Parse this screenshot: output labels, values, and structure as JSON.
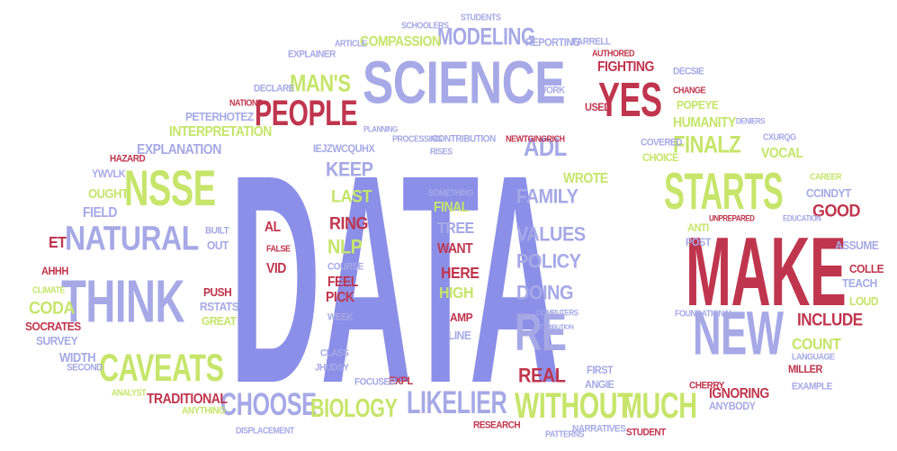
{
  "colors": {
    "blue": "#8b8fe8",
    "lavender": "#a6a9e6",
    "green": "#c6e56a",
    "red": "#c0354e",
    "background": "#ffffff"
  },
  "words": [
    "DATA",
    "MAKE",
    "SCIENCE",
    "THINK",
    "NSSE",
    "NATURAL",
    "STARTS",
    "PEOPLE",
    "YES",
    "NEW",
    "CAVEATS",
    "WITHOUT",
    "MUCH",
    "RE",
    "CHOOSE",
    "LIKELIER",
    "BIOLOGY",
    "MODELING",
    "MAN'S",
    "FINALZ",
    "ADL",
    "KEEP",
    "LAST",
    "RING",
    "NLP",
    "FAMILY",
    "VALUES",
    "POLICY",
    "DOING",
    "INCLUDE",
    "COUNT",
    "GOOD",
    "REAL",
    "COMPASSION",
    "INTERPRETATION",
    "EXPLANATION",
    "HUMANITY",
    "FIGHTING",
    "TRADITIONAL",
    "IGNORING",
    "FIELD",
    "ET",
    "CODA",
    "PUSH",
    "RSTATS",
    "SOCRATES",
    "SURVEY",
    "WIDTH",
    "AL",
    "VID",
    "FEEL",
    "PICK",
    "TREE",
    "WANT",
    "HERE",
    "HIGH",
    "AMP",
    "LINE",
    "FINAL",
    "WROTE",
    "POPEYE",
    "VOCAL",
    "CCINDYT",
    "ASSUME",
    "COLLE",
    "TEACH",
    "LOUD",
    "MILLER",
    "EXAMPLE",
    "ANYBODY",
    "CHERRY",
    "FIRST",
    "ANGIE",
    "EXPL",
    "FOCUSED",
    "JHUDSY",
    "CLASS",
    "WEEK",
    "COURSE",
    "POST",
    "ANTI",
    "CHOICE",
    "COVERED",
    "USED",
    "WORK",
    "DECSIE",
    "AUTHORED",
    "REPORTING",
    "FARRELL",
    "SCHOOLERS",
    "STUDENTS",
    "ARTICLE",
    "EXPLAINER",
    "DECLARE",
    "NATIONS",
    "PETERHOTEZ",
    "HAZARD",
    "YWVLK",
    "OUGHT",
    "BUILT",
    "OUT",
    "FALSE",
    "AHHH",
    "CLIMATE",
    "SECOND",
    "ANALYST",
    "ANYTHING",
    "DISPLACEMENT",
    "RESEARCH",
    "PATTERNS",
    "NARRATIVES",
    "STUDENT",
    "COMPUTERS",
    "FOUNDATIONAL",
    "LANGUAGE",
    "UNPREPARED",
    "EDUCATION",
    "CAREER",
    "CXURQG",
    "DENIERS",
    "CHANGE",
    "PLANNING",
    "PROCESSING",
    "CONTRIBUTION",
    "NEWTGINGRICH",
    "RISES",
    "SOMETHING",
    "IEJZWCQUHX",
    "GREAT",
    "ATTRIBUTION"
  ]
}
